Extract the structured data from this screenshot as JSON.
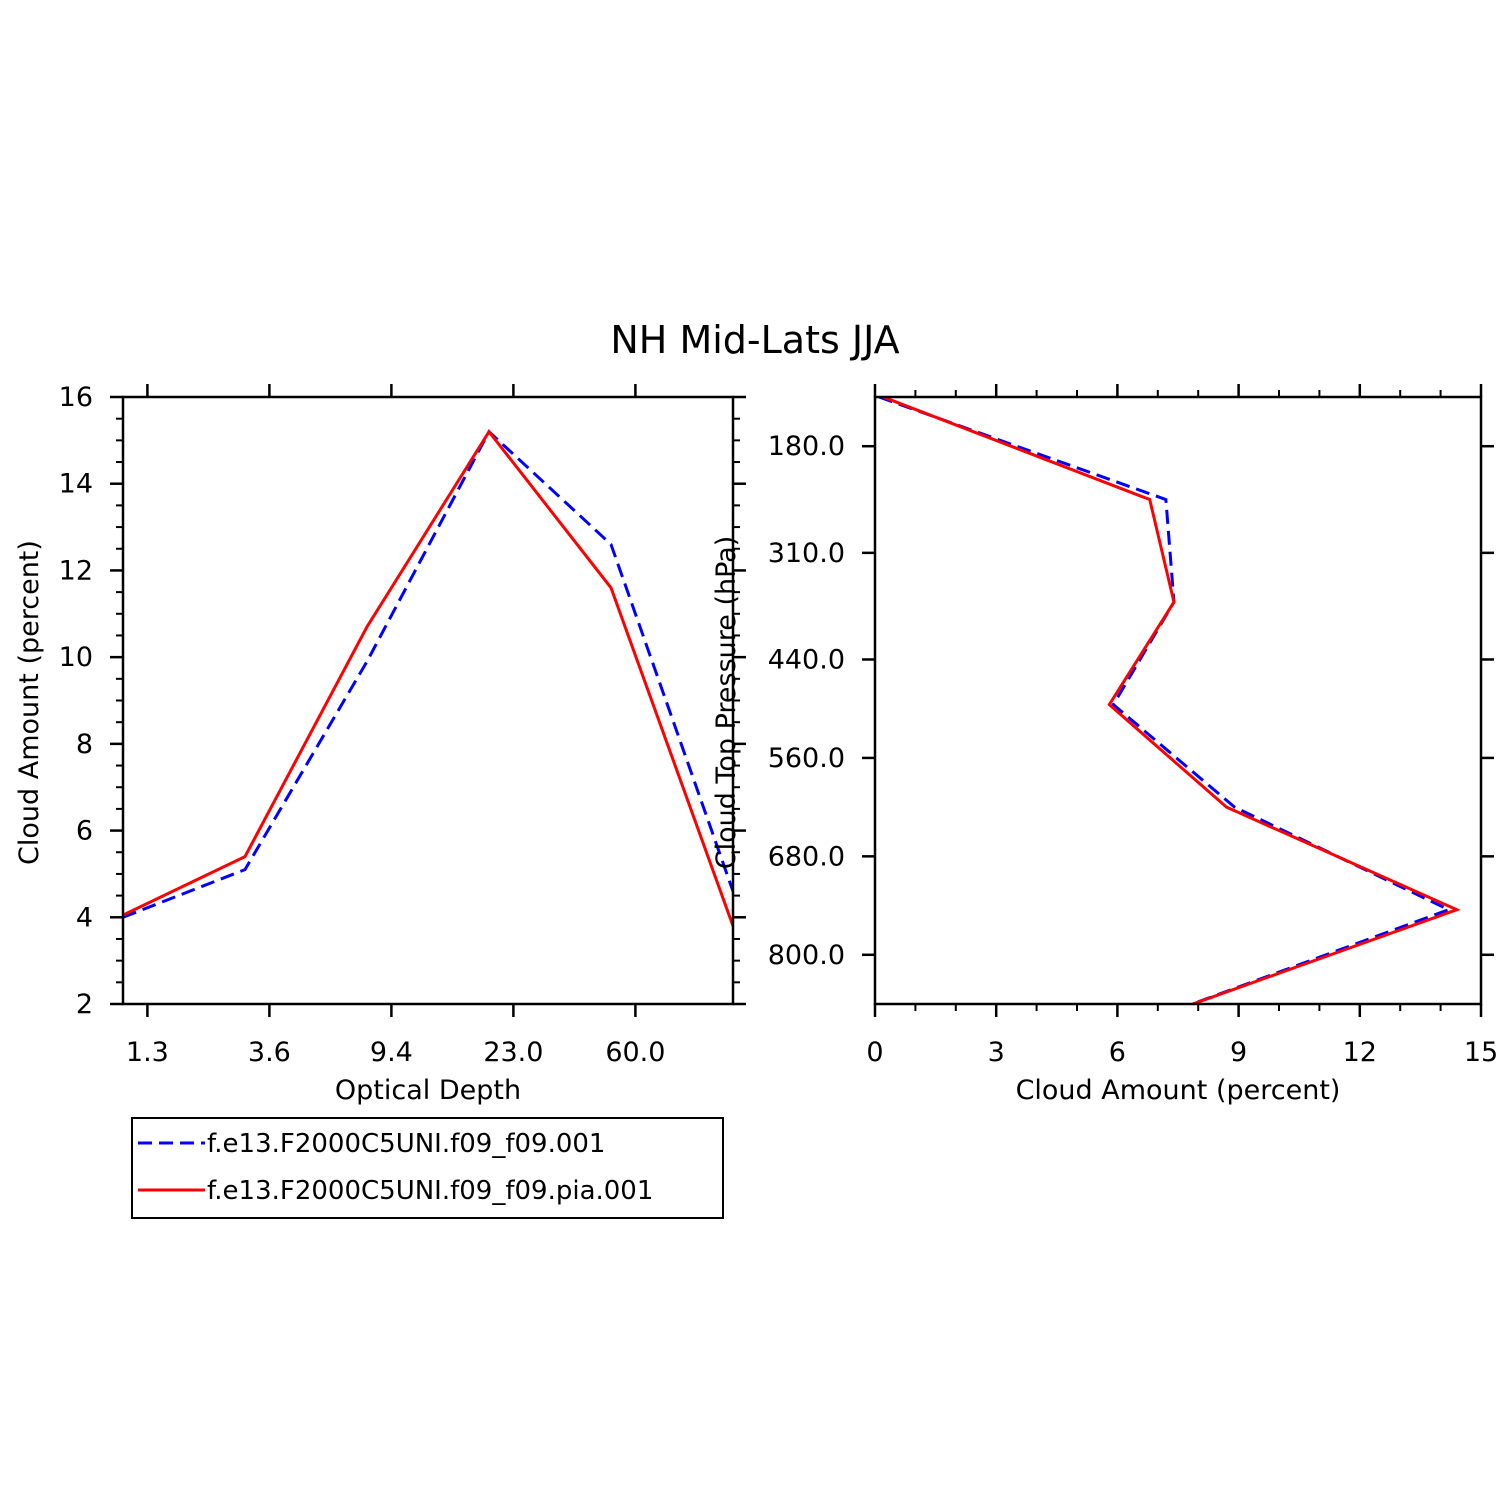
{
  "title": "NH Mid-Lats JJA",
  "colors": {
    "series_a": "#0000ff",
    "series_b": "#ff0000",
    "axes": "#000000"
  },
  "legend": {
    "position": "below-left",
    "entries": [
      {
        "label": "f.e13.F2000C5UNI.f09_f09.001",
        "color": "#0000ff",
        "dash": "dashed"
      },
      {
        "label": "f.e13.F2000C5UNI.f09_f09.pia.001",
        "color": "#ff0000",
        "dash": "solid"
      }
    ]
  },
  "chart_data": [
    {
      "type": "line",
      "xlabel": "Optical Depth",
      "ylabel": "Cloud Amount (percent)",
      "x_categories": [
        "1.3",
        "3.6",
        "9.4",
        "23.0",
        "60.0"
      ],
      "x": [
        0.3,
        1.3,
        2.3,
        3.3,
        4.3,
        5.3
      ],
      "xlim": [
        -0.2,
        4.8
      ],
      "ylim": [
        2,
        16
      ],
      "yticks": [
        2,
        4,
        6,
        8,
        10,
        12,
        14,
        16
      ],
      "yminor": 0.5,
      "series": [
        {
          "name": "f.e13.F2000C5UNI.f09_f09.001",
          "color": "#0000ff",
          "dash": "dashed",
          "x": [
            -0.2,
            0.8,
            1.8,
            2.8,
            3.8,
            4.8
          ],
          "values": [
            4.0,
            5.1,
            9.9,
            15.2,
            12.6,
            4.6
          ]
        },
        {
          "name": "f.e13.F2000C5UNI.f09_f09.pia.001",
          "color": "#ff0000",
          "dash": "solid",
          "x": [
            -0.2,
            0.8,
            1.8,
            2.8,
            3.8,
            4.8
          ],
          "values": [
            4.05,
            5.4,
            10.7,
            15.2,
            11.6,
            3.8
          ]
        }
      ]
    },
    {
      "type": "line",
      "xlabel": "Cloud Amount (percent)",
      "ylabel": "Cloud Top Pressure (hPa)",
      "xlim": [
        0,
        15
      ],
      "xticks": [
        0,
        3,
        6,
        9,
        12,
        15
      ],
      "xminor": 1,
      "ylim": [
        120,
        860
      ],
      "yticks": [
        180,
        310,
        440,
        560,
        680,
        800
      ],
      "ytick_labels": [
        "180.0",
        "310.0",
        "440.0",
        "560.0",
        "680.0",
        "800.0"
      ],
      "y_inverted": true,
      "series": [
        {
          "name": "f.e13.F2000C5UNI.f09_f09.001",
          "color": "#0000ff",
          "dash": "dashed",
          "values": [
            0.1,
            7.2,
            7.4,
            5.9,
            8.9,
            14.2,
            7.3
          ],
          "y": [
            120,
            245,
            370,
            495,
            620,
            745,
            870
          ]
        },
        {
          "name": "f.e13.F2000C5UNI.f09_f09.pia.001",
          "color": "#ff0000",
          "dash": "solid",
          "values": [
            0.2,
            6.8,
            7.4,
            5.8,
            8.7,
            14.4,
            7.3
          ],
          "y": [
            120,
            245,
            370,
            495,
            620,
            745,
            870
          ]
        }
      ]
    }
  ]
}
